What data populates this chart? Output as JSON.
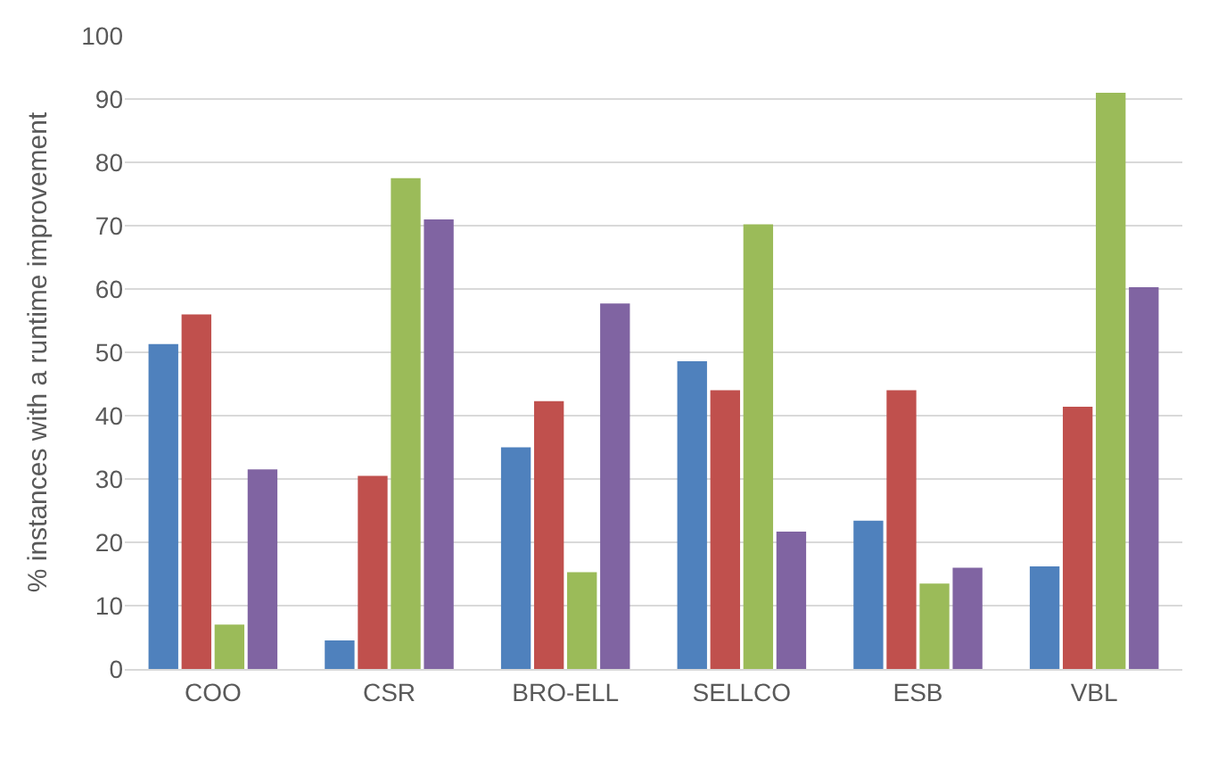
{
  "chart_data": {
    "type": "bar",
    "ylabel": "% instances with a runtime improvement",
    "categories": [
      "COO",
      "CSR",
      "BRO-ELL",
      "SELLCO",
      "ESB",
      "VBL"
    ],
    "series": [
      {
        "color": "#4f81bd",
        "values": [
          51.3,
          4.5,
          35,
          48.6,
          23.4,
          16.2
        ]
      },
      {
        "color": "#c0504d",
        "values": [
          56,
          30.5,
          42.3,
          44,
          44,
          41.4
        ]
      },
      {
        "color": "#9bbb59",
        "values": [
          7,
          77.5,
          15.3,
          70.2,
          13.5,
          91
        ]
      },
      {
        "color": "#8064a2",
        "values": [
          31.5,
          71,
          57.7,
          21.7,
          16,
          60.3
        ]
      }
    ],
    "ylim": [
      0,
      100
    ],
    "yticks": [
      0,
      10,
      20,
      30,
      40,
      50,
      60,
      70,
      80,
      90,
      100
    ],
    "grid": "y"
  }
}
